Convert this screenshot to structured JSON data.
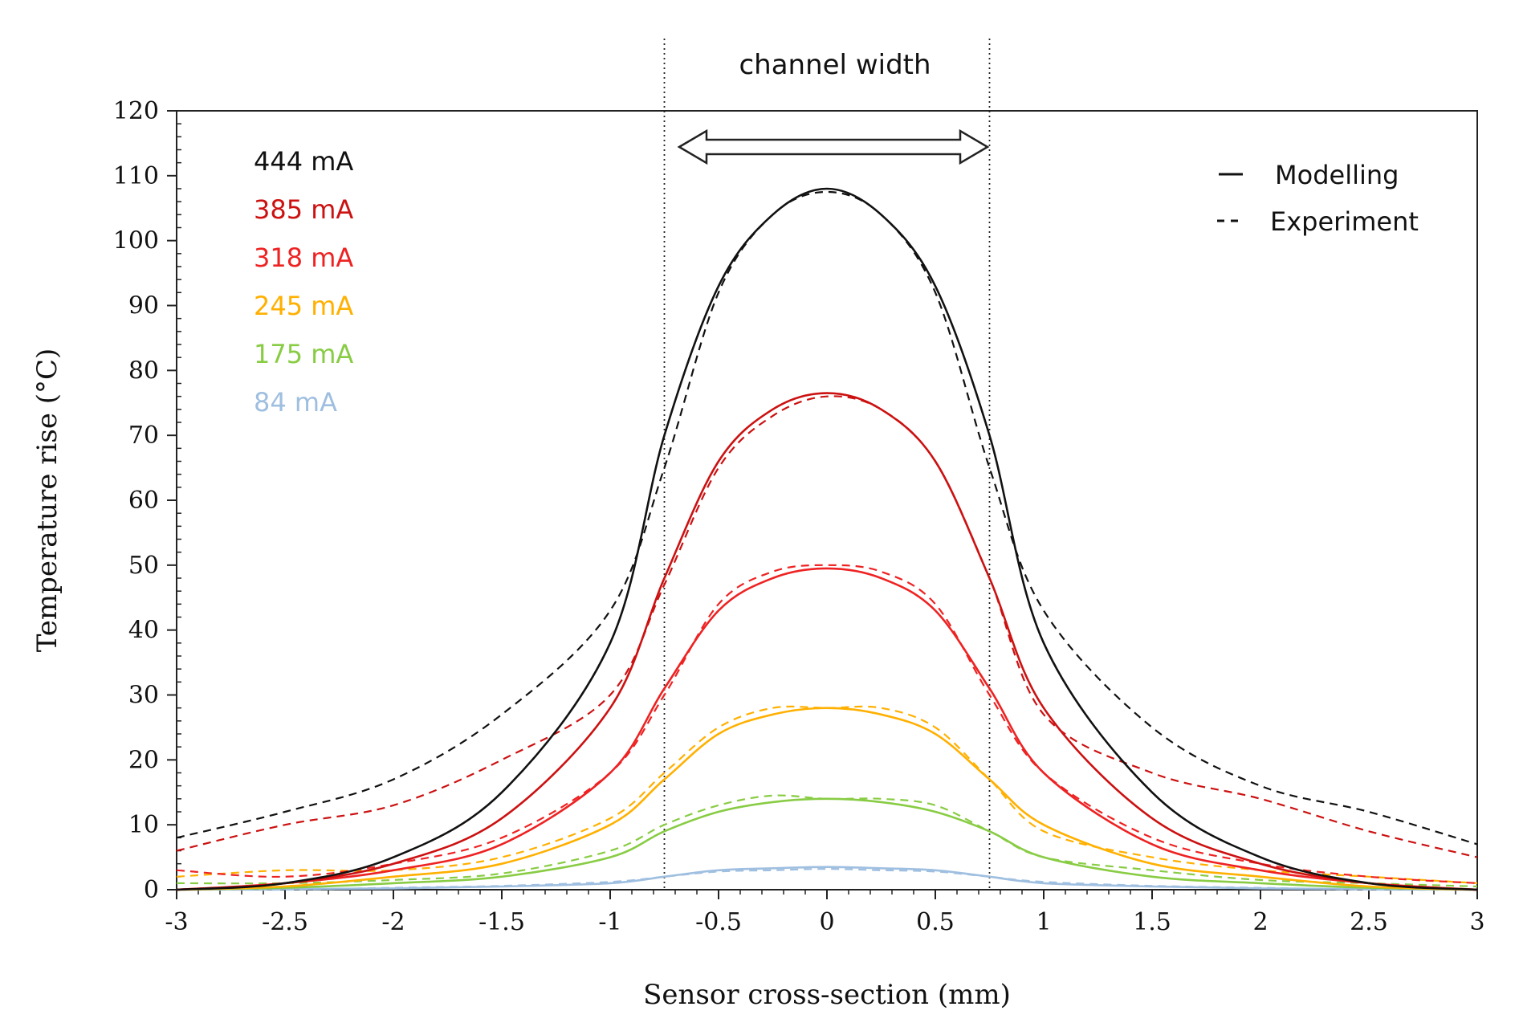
{
  "chart_data": {
    "type": "line",
    "title": "",
    "xlabel": "Sensor cross-section (mm)",
    "ylabel": "Temperature rise (°C)",
    "xlim": [
      -3,
      3
    ],
    "ylim": [
      0,
      120
    ],
    "xticks": [
      "-3",
      "-2.5",
      "-2",
      "-1.5",
      "-1",
      "-0.5",
      "0",
      "0.5",
      "1",
      "1.5",
      "2",
      "2.5",
      "3"
    ],
    "yticks": [
      "0",
      "10",
      "20",
      "30",
      "40",
      "50",
      "60",
      "70",
      "80",
      "90",
      "100",
      "110",
      "120"
    ],
    "x": [
      -3.0,
      -2.5,
      -2.0,
      -1.5,
      -1.0,
      -0.75,
      -0.5,
      -0.25,
      0.0,
      0.25,
      0.5,
      0.75,
      1.0,
      1.5,
      2.0,
      2.5,
      3.0
    ],
    "series": [
      {
        "name": "444 mA",
        "color": "#111111",
        "modelling": [
          0,
          1,
          5,
          15,
          38,
          70,
          93,
          104,
          108,
          104,
          93,
          70,
          38,
          15,
          5,
          1,
          0
        ],
        "experiment": [
          8,
          12,
          17,
          27,
          43,
          65,
          92,
          104,
          107.5,
          104,
          92,
          65,
          43,
          25,
          16,
          12,
          7
        ]
      },
      {
        "name": "385 mA",
        "color": "#cc1111",
        "modelling": [
          0,
          1,
          4,
          11,
          28,
          48,
          66,
          74,
          76.5,
          74,
          66,
          48,
          28,
          11,
          4,
          1,
          0
        ],
        "experiment": [
          6,
          10,
          13,
          20,
          30,
          47,
          65,
          73,
          76,
          74,
          66,
          48,
          27,
          18,
          14,
          9,
          5
        ]
      },
      {
        "name": "318 mA",
        "color": "#ee2222",
        "modelling": [
          0,
          1,
          3,
          7,
          18,
          31,
          43,
          48,
          49.5,
          48,
          43,
          31,
          18,
          7,
          3,
          1,
          0
        ],
        "experiment": [
          3,
          2,
          4,
          8,
          18,
          30,
          44,
          49,
          50,
          49,
          44,
          30,
          18,
          8,
          4,
          2,
          1
        ]
      },
      {
        "name": "245 mA",
        "color": "#ffb000",
        "modelling": [
          0,
          0.5,
          2,
          4,
          10,
          17,
          24,
          27,
          28,
          27,
          24,
          17,
          10,
          4,
          2,
          0.5,
          0
        ],
        "experiment": [
          2,
          3,
          3,
          5,
          11,
          18,
          25,
          28,
          28,
          28,
          25,
          17,
          9,
          5,
          3,
          2,
          1
        ]
      },
      {
        "name": "175 mA",
        "color": "#88cc44",
        "modelling": [
          0,
          0.3,
          1,
          2,
          5,
          9,
          12,
          13.5,
          14,
          13.5,
          12,
          9,
          5,
          2,
          1,
          0.3,
          0
        ],
        "experiment": [
          1,
          1,
          1.5,
          2.5,
          6,
          10,
          13,
          14.5,
          14,
          14,
          13,
          9,
          5,
          3,
          1.5,
          1,
          0.5
        ]
      },
      {
        "name": "84 mA",
        "color": "#9fbfe0",
        "modelling": [
          0,
          0.1,
          0.2,
          0.5,
          1,
          2,
          3,
          3.3,
          3.5,
          3.3,
          3,
          2,
          1,
          0.5,
          0.2,
          0.1,
          0
        ],
        "experiment": [
          0,
          0,
          0.3,
          0.6,
          1.2,
          2,
          2.8,
          3,
          3.2,
          3,
          2.8,
          2,
          1.2,
          0.6,
          0.3,
          0,
          0
        ]
      }
    ],
    "legend_style": {
      "solid_label": "Modelling",
      "dashed_label": "Experiment",
      "placement": "top-right"
    },
    "current_legend_placement": "top-left",
    "annotations": {
      "channel_width_label": "channel width",
      "channel_bounds_mm": [
        -0.75,
        0.75
      ]
    }
  }
}
